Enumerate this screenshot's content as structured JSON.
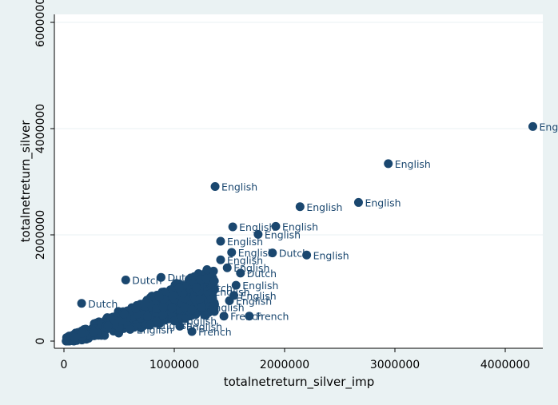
{
  "chart_data": {
    "type": "scatter",
    "title": "",
    "xlabel": "totalnetreturn_silver_imp",
    "ylabel": "totalnetreturn_silver",
    "xlim": [
      0,
      4300000
    ],
    "ylim": [
      0,
      6000000
    ],
    "x_ticks": [
      0,
      1000000,
      2000000,
      3000000,
      4000000
    ],
    "y_ticks": [
      0,
      2000000,
      4000000,
      6000000
    ],
    "x_tick_labels": [
      "0",
      "1000000",
      "2000000",
      "3000000",
      "4000000"
    ],
    "y_tick_labels": [
      "0",
      "2000000",
      "4000000",
      "6000000"
    ],
    "grid": true,
    "marker_color": "#1a476f",
    "points": [
      {
        "x": 4250000,
        "y": 4040000,
        "label": "English"
      },
      {
        "x": 2940000,
        "y": 3340000,
        "label": "English"
      },
      {
        "x": 1370000,
        "y": 2910000,
        "label": "English"
      },
      {
        "x": 2670000,
        "y": 2610000,
        "label": "English"
      },
      {
        "x": 2140000,
        "y": 2530000,
        "label": "English"
      },
      {
        "x": 1530000,
        "y": 2150000,
        "label": "English"
      },
      {
        "x": 1920000,
        "y": 2160000,
        "label": "English"
      },
      {
        "x": 1760000,
        "y": 2010000,
        "label": "English"
      },
      {
        "x": 1420000,
        "y": 1880000,
        "label": "English"
      },
      {
        "x": 1520000,
        "y": 1670000,
        "label": "English"
      },
      {
        "x": 1890000,
        "y": 1660000,
        "label": "Dutch"
      },
      {
        "x": 2200000,
        "y": 1620000,
        "label": "English"
      },
      {
        "x": 1420000,
        "y": 1530000,
        "label": "English"
      },
      {
        "x": 1600000,
        "y": 1280000,
        "label": "Dutch"
      },
      {
        "x": 560000,
        "y": 1150000,
        "label": "Dutch"
      },
      {
        "x": 160000,
        "y": 710000,
        "label": "Dutch"
      },
      {
        "x": 1000000,
        "y": 380000,
        "label": "English"
      },
      {
        "x": 1050000,
        "y": 280000,
        "label": "English"
      },
      {
        "x": 1450000,
        "y": 470000,
        "label": "French"
      },
      {
        "x": 1680000,
        "y": 470000,
        "label": "French"
      },
      {
        "x": 1160000,
        "y": 180000,
        "label": "French"
      },
      {
        "x": 1500000,
        "y": 760000,
        "label": "English"
      },
      {
        "x": 1540000,
        "y": 860000,
        "label": "English"
      },
      {
        "x": 1560000,
        "y": 1050000,
        "label": "English"
      },
      {
        "x": 1480000,
        "y": 1380000,
        "label": "English"
      },
      {
        "x": 880000,
        "y": 1200000,
        "label": "Dutch"
      },
      {
        "x": 780000,
        "y": 300000,
        "label": "English"
      },
      {
        "x": 600000,
        "y": 220000,
        "label": "English"
      },
      {
        "x": 1250000,
        "y": 640000,
        "label": "English"
      },
      {
        "x": 1300000,
        "y": 930000,
        "label": "English"
      },
      {
        "x": 1200000,
        "y": 1010000,
        "label": "Dutch"
      },
      {
        "x": 900000,
        "y": 640000,
        "label": ""
      },
      {
        "x": 400000,
        "y": 290000,
        "label": ""
      }
    ]
  }
}
